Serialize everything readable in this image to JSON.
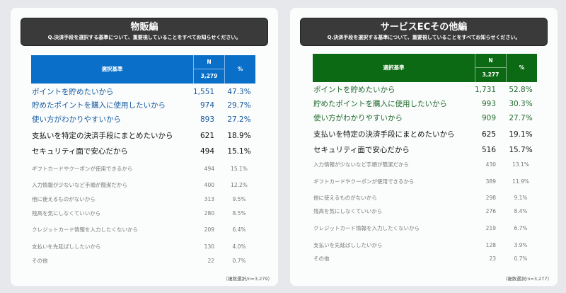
{
  "colors": {
    "blue": "#0a6fc9",
    "blue_text": "#12599f",
    "green": "#0d6a14",
    "green_text": "#1f6a2c"
  },
  "question": "Q.決済手段を選択する基準について、重要視していることをすべてお知らせください。",
  "left": {
    "title": "物販編",
    "col_label": "選択基準",
    "n_label": "N",
    "n_total": "3,279",
    "pct_label": "%",
    "rows": [
      {
        "label": "ポイントを貯めたいから",
        "n": "1,551",
        "pct": "47.3%"
      },
      {
        "label": "貯めたポイントを購入に使用したいから",
        "n": "974",
        "pct": "29.7%"
      },
      {
        "label": "使い方がわかりやすいから",
        "n": "893",
        "pct": "27.2%"
      },
      {
        "label": "支払いを特定の決済手段にまとめたいから",
        "n": "621",
        "pct": "18.9%"
      },
      {
        "label": "セキュリティ面で安心だから",
        "n": "494",
        "pct": "15.1%"
      },
      {
        "label": "ギフトカードやクーポンが使用できるから",
        "n": "494",
        "pct": "15.1%"
      },
      {
        "label": "入力情報が少ないなど手順が簡潔だから",
        "n": "400",
        "pct": "12.2%"
      },
      {
        "label": "他に使えるものがないから",
        "n": "313",
        "pct": "9.5%"
      },
      {
        "label": "残高を気にしなくていいから",
        "n": "280",
        "pct": "8.5%"
      },
      {
        "label": "クレジットカード情報を入力したくないから",
        "n": "209",
        "pct": "6.4%"
      },
      {
        "label": "支払いを先延ばししたいから",
        "n": "130",
        "pct": "4.0%"
      },
      {
        "label": "その他",
        "n": "22",
        "pct": "0.7%"
      }
    ],
    "footnote": "（複数選択/n=3,279）"
  },
  "right": {
    "title": "サービスECその他編",
    "col_label": "選択基準",
    "n_label": "N",
    "n_total": "3,277",
    "pct_label": "%",
    "rows": [
      {
        "label": "ポイントを貯めたいから",
        "n": "1,731",
        "pct": "52.8%"
      },
      {
        "label": "貯めたポイントを購入に使用したいから",
        "n": "993",
        "pct": "30.3%"
      },
      {
        "label": "使い方がわかりやすいから",
        "n": "909",
        "pct": "27.7%"
      },
      {
        "label": "支払いを特定の決済手段にまとめたいから",
        "n": "625",
        "pct": "19.1%"
      },
      {
        "label": "セキュリティ面で安心だから",
        "n": "516",
        "pct": "15.7%"
      },
      {
        "label": "入力情報が少ないなど手順が簡潔だから",
        "n": "430",
        "pct": "13.1%"
      },
      {
        "label": "ギフトカードやクーポンが使用できるから",
        "n": "389",
        "pct": "11.9%"
      },
      {
        "label": "他に使えるものがないから",
        "n": "298",
        "pct": "9.1%"
      },
      {
        "label": "残高を気にしなくていいから",
        "n": "276",
        "pct": "8.4%"
      },
      {
        "label": "クレジットカード情報を入力したくないから",
        "n": "219",
        "pct": "6.7%"
      },
      {
        "label": "支払いを先延ばししたいから",
        "n": "128",
        "pct": "3.9%"
      },
      {
        "label": "その他",
        "n": "23",
        "pct": "0.7%"
      }
    ],
    "footnote": "（複数選択/n=3,277）"
  }
}
